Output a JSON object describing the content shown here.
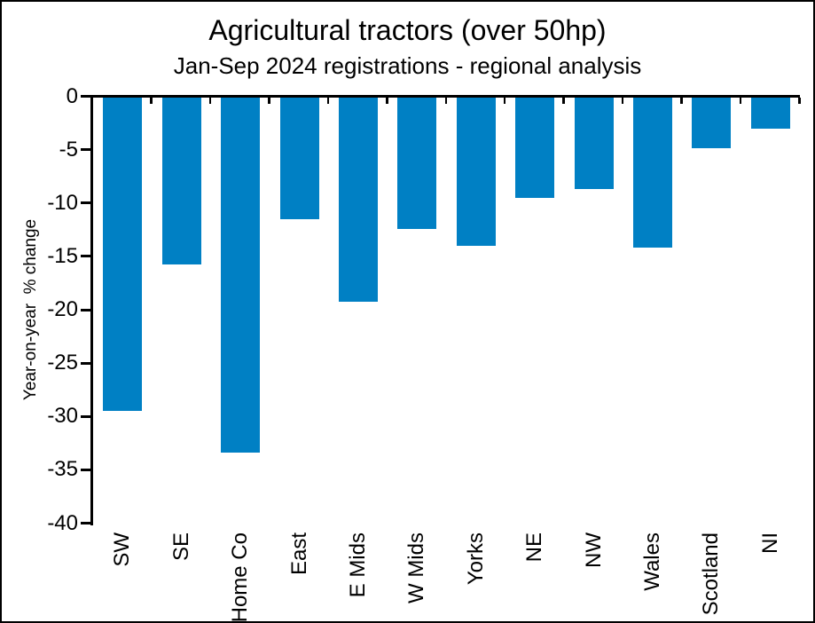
{
  "chart_data": {
    "type": "bar",
    "title": "Agricultural tractors (over 50hp)",
    "subtitle": "Jan-Sep 2024 registrations - regional analysis",
    "ylabel": "Year-on-year  % change",
    "xlabel": "",
    "categories": [
      "SW",
      "SE",
      "Home Co",
      "East",
      "E Mids",
      "W Mids",
      "Yorks",
      "NE",
      "NW",
      "Wales",
      "Scotland",
      "NI"
    ],
    "values": [
      -29.5,
      -15.8,
      -33.4,
      -11.5,
      -19.3,
      -12.4,
      -14.0,
      -9.5,
      -8.7,
      -14.2,
      -4.9,
      -3.0
    ],
    "ylim": [
      -40,
      0
    ],
    "ytick_step": 5,
    "ytick_labels": [
      "0",
      "-5",
      "-10",
      "-15",
      "-20",
      "-25",
      "-30",
      "-35",
      "-40"
    ],
    "grid": false,
    "legend": false,
    "bar_color": "#0080C4",
    "axis_color": "#000000",
    "text_color": "#000000",
    "background_color": "#ffffff"
  }
}
